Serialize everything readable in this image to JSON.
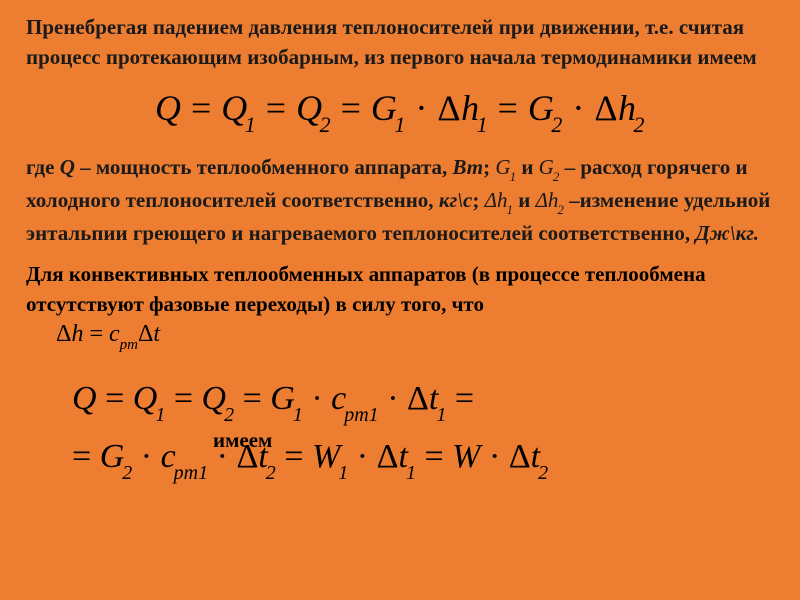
{
  "para1": "Пренебрегая падением давления теплоносителей при движении, т.е. считая процесс протекающим изобарным, из первого начала термодинамики имеем",
  "formula1": {
    "Q": "Q",
    "eq": "=",
    "Q1": "Q",
    "s1": "1",
    "Q2": "Q",
    "s2": "2",
    "G1": "G",
    "gs1": "1",
    "dot": "·",
    "D": "Δ",
    "h": "h",
    "hs1": "1",
    "G2": "G",
    "gs2": "2",
    "hs2": "2"
  },
  "p2a": "где ",
  "p2Q": "Q",
  "p2b": " – мощность теплообменного аппарата, ",
  "p2Wt": "Вт",
  "p2semi": "; ",
  "G1": "G",
  "G1s": "1",
  "p2and": "  и  ",
  "G2": "G",
  "G2s": "2",
  "p2dash": "  – расход горячего и холодного теплоносителей соответственно, ",
  "p2kg": "кг\\с",
  "p2semi2": "; ",
  "dh1": "Δh",
  "dh1s": "1",
  "p2and2": " и ",
  "dh2": "Δh",
  "dh2s": "2",
  "p2c": "  –изменение удельной энтальпии греющего и нагреваемого теплоносителей соответственно, ",
  "p2J": "Дж\\кг.",
  "para3": "Для конвективных теплообменных аппаратов (в процессе теплообмена отсутствуют фазовые переходы) в силу того, что",
  "fsmall": {
    "D": "Δ",
    "h": "h",
    "eq": "=",
    "c": "c",
    "pm": "pm",
    "t": "t"
  },
  "orphan": "имеем",
  "fbig": {
    "Q": "Q",
    "eq": "=",
    "Q1": "Q",
    "s1": "1",
    "Q2": "Q",
    "s2": "2",
    "G1": "G",
    "gs1": "1",
    "dot": "·",
    "c": "c",
    "pm1": "pm1",
    "D": "Δ",
    "t": "t",
    "ts1": "1",
    "line2eq": "=",
    "G2": "G",
    "gs2": "2",
    "pm12": "pm1",
    "ts2": "2",
    "W1": "W",
    "Ws1": "1",
    "W": "W"
  }
}
